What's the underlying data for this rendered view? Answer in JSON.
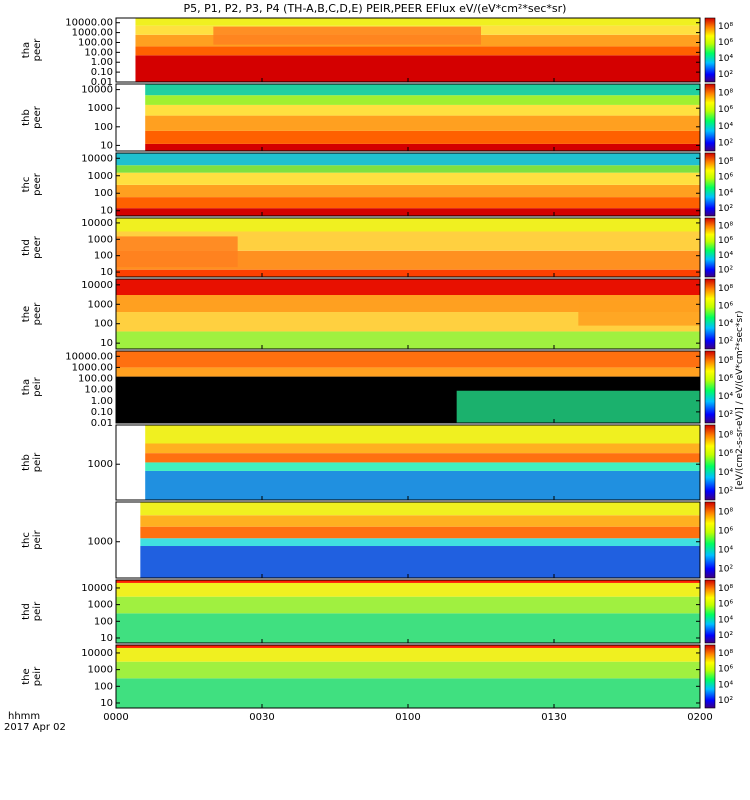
{
  "chart_data": {
    "type": "heatmap",
    "title": "P5, P1, P2, P3, P4 (TH-A,B,C,D,E) PEIR,PEER EFlux eV/(eV*cm²*sec*sr)",
    "x_ticks": [
      "0000",
      "0030",
      "0100",
      "0130",
      "0200"
    ],
    "x_range": [
      "00:00",
      "02:00"
    ],
    "x_corner_label": "hhmm",
    "x_date_label": "2017 Apr 02",
    "y_scale": "log",
    "colorbar": {
      "ticks": [
        "10²",
        "10⁴",
        "10⁶",
        "10⁸"
      ],
      "unit_label": "[eV/(cm2-s-sr-eV)] / eV/(eV*cm²*sec*sr)"
    },
    "panels": [
      {
        "probe": "tha",
        "species": "peer",
        "y_ticks": [
          "10000.00",
          "1000.00",
          "100.00",
          "10.00",
          "1.00",
          "0.10",
          "0.01"
        ],
        "y_range": [
          0.01,
          30000
        ],
        "data_start": "00:04",
        "bands": [
          {
            "y": [
              0.01,
              5
            ],
            "color": "#d40000"
          },
          {
            "y": [
              5,
              40
            ],
            "color": "#ff6000"
          },
          {
            "y": [
              40,
              600
            ],
            "color": "#ffa020"
          },
          {
            "y": [
              600,
              5000
            ],
            "color": "#ffe040"
          },
          {
            "y": [
              5000,
              30000
            ],
            "color": "#f0f020"
          }
        ],
        "highlight": {
          "y": [
            60,
            4000
          ],
          "x": [
            "00:20",
            "01:15"
          ],
          "color": "#ff8020"
        }
      },
      {
        "probe": "thb",
        "species": "peer",
        "y_ticks": [
          "10000",
          "1000",
          "100",
          "10"
        ],
        "y_range": [
          5,
          20000
        ],
        "data_start": "00:06",
        "bands": [
          {
            "y": [
              5,
              12
            ],
            "color": "#d40000"
          },
          {
            "y": [
              12,
              60
            ],
            "color": "#ff6000"
          },
          {
            "y": [
              60,
              400
            ],
            "color": "#ffa020"
          },
          {
            "y": [
              400,
              1500
            ],
            "color": "#ffe040"
          },
          {
            "y": [
              1500,
              5000
            ],
            "color": "#a0f030"
          },
          {
            "y": [
              5000,
              20000
            ],
            "color": "#20d0a0"
          }
        ]
      },
      {
        "probe": "thc",
        "species": "peer",
        "y_ticks": [
          "10000",
          "1000",
          "100",
          "10"
        ],
        "y_range": [
          5,
          20000
        ],
        "data_start": "00:00",
        "bands": [
          {
            "y": [
              5,
              14
            ],
            "color": "#d40000"
          },
          {
            "y": [
              14,
              60
            ],
            "color": "#ff6000"
          },
          {
            "y": [
              60,
              300
            ],
            "color": "#ffa020"
          },
          {
            "y": [
              300,
              1500
            ],
            "color": "#ffe040"
          },
          {
            "y": [
              1500,
              4000
            ],
            "color": "#80e040"
          },
          {
            "y": [
              4000,
              20000
            ],
            "color": "#20c0d0"
          }
        ]
      },
      {
        "probe": "thd",
        "species": "peer",
        "y_ticks": [
          "10000",
          "1000",
          "100",
          "10"
        ],
        "y_range": [
          5,
          20000
        ],
        "data_start": "00:00",
        "bands": [
          {
            "y": [
              5,
              14
            ],
            "color": "#ff4000"
          },
          {
            "y": [
              14,
              200
            ],
            "color": "#ff9020"
          },
          {
            "y": [
              200,
              3000
            ],
            "color": "#ffd040"
          },
          {
            "y": [
              3000,
              20000
            ],
            "color": "#f0f020"
          }
        ],
        "highlight": {
          "y": [
            20,
            1500
          ],
          "x": [
            "00:00",
            "00:25"
          ],
          "color": "#ff8020"
        }
      },
      {
        "probe": "the",
        "species": "peer",
        "y_ticks": [
          "10000",
          "1000",
          "100",
          "10"
        ],
        "y_range": [
          5,
          20000
        ],
        "data_start": "00:00",
        "bands": [
          {
            "y": [
              5,
              40
            ],
            "color": "#a0f040"
          },
          {
            "y": [
              40,
              400
            ],
            "color": "#ffd040"
          },
          {
            "y": [
              400,
              3000
            ],
            "color": "#ffa020"
          },
          {
            "y": [
              3000,
              20000
            ],
            "color": "#e81000"
          }
        ],
        "highlight": {
          "y": [
            80,
            1500
          ],
          "x": [
            "01:35",
            "02:00"
          ],
          "color": "#ffa020"
        }
      },
      {
        "probe": "tha",
        "species": "peir",
        "y_ticks": [
          "10000.00",
          "1000.00",
          "100.00",
          "10.00",
          "1.00",
          "0.10",
          "0.01"
        ],
        "y_range": [
          0.01,
          30000
        ],
        "data_start": "00:00",
        "bands": [
          {
            "y": [
              0.01,
              150
            ],
            "color": "#000000"
          },
          {
            "y": [
              150,
              1000
            ],
            "color": "#ffa020"
          },
          {
            "y": [
              1000,
              30000
            ],
            "color": "#ff7010"
          }
        ],
        "highlight": {
          "y": [
            0.01,
            8
          ],
          "x": [
            "01:10",
            "02:00"
          ],
          "color": "#20d080"
        }
      },
      {
        "probe": "thb",
        "species": "peir",
        "y_ticks": [
          "1000"
        ],
        "y_range": [
          150,
          8000
        ],
        "data_start": "00:06",
        "bands": [
          {
            "y": [
              150,
              700
            ],
            "color": "#2090e0"
          },
          {
            "y": [
              700,
              1100
            ],
            "color": "#40f0c0"
          },
          {
            "y": [
              1100,
              1800
            ],
            "color": "#ff7010"
          },
          {
            "y": [
              1800,
              3000
            ],
            "color": "#ffb020"
          },
          {
            "y": [
              3000,
              8000
            ],
            "color": "#f0f020"
          }
        ]
      },
      {
        "probe": "thc",
        "species": "peir",
        "y_ticks": [
          "1000"
        ],
        "y_range": [
          150,
          8000
        ],
        "data_start": "00:05",
        "bands": [
          {
            "y": [
              150,
              800
            ],
            "color": "#2060e0"
          },
          {
            "y": [
              800,
              1200
            ],
            "color": "#40e0e0"
          },
          {
            "y": [
              1200,
              2200
            ],
            "color": "#ff7010"
          },
          {
            "y": [
              2200,
              4000
            ],
            "color": "#ffb020"
          },
          {
            "y": [
              4000,
              8000
            ],
            "color": "#f0f020"
          }
        ]
      },
      {
        "probe": "thd",
        "species": "peir",
        "y_ticks": [
          "10000",
          "1000",
          "100",
          "10"
        ],
        "y_range": [
          5,
          30000
        ],
        "data_start": "00:00",
        "bands": [
          {
            "y": [
              5,
              300
            ],
            "color": "#40e080"
          },
          {
            "y": [
              300,
              3000
            ],
            "color": "#a0f040"
          },
          {
            "y": [
              3000,
              20000
            ],
            "color": "#f0f020"
          },
          {
            "y": [
              20000,
              30000
            ],
            "color": "#ff2000"
          }
        ]
      },
      {
        "probe": "the",
        "species": "peir",
        "y_ticks": [
          "10000",
          "1000",
          "100",
          "10"
        ],
        "y_range": [
          5,
          30000
        ],
        "data_start": "00:00",
        "bands": [
          {
            "y": [
              5,
              300
            ],
            "color": "#40e080"
          },
          {
            "y": [
              300,
              3000
            ],
            "color": "#a0f040"
          },
          {
            "y": [
              3000,
              20000
            ],
            "color": "#f0f020"
          },
          {
            "y": [
              20000,
              30000
            ],
            "color": "#ff2000"
          }
        ]
      }
    ]
  }
}
